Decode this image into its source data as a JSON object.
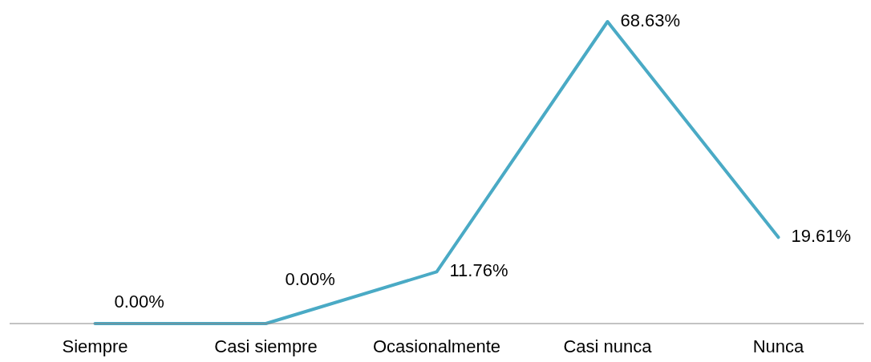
{
  "chart_data": {
    "type": "line",
    "categories": [
      "Siempre",
      "Casi siempre",
      "Ocasionalmente",
      "Casi nunca",
      "Nunca"
    ],
    "series": [
      {
        "color": "#4aaac5",
        "values": [
          0,
          0,
          11.76,
          68.63,
          19.61
        ],
        "value_labels": [
          "0.00%",
          "0.00%",
          "11.76%",
          "68.63%",
          "19.61%"
        ]
      }
    ],
    "marker": "none",
    "line_style": "solid"
  }
}
